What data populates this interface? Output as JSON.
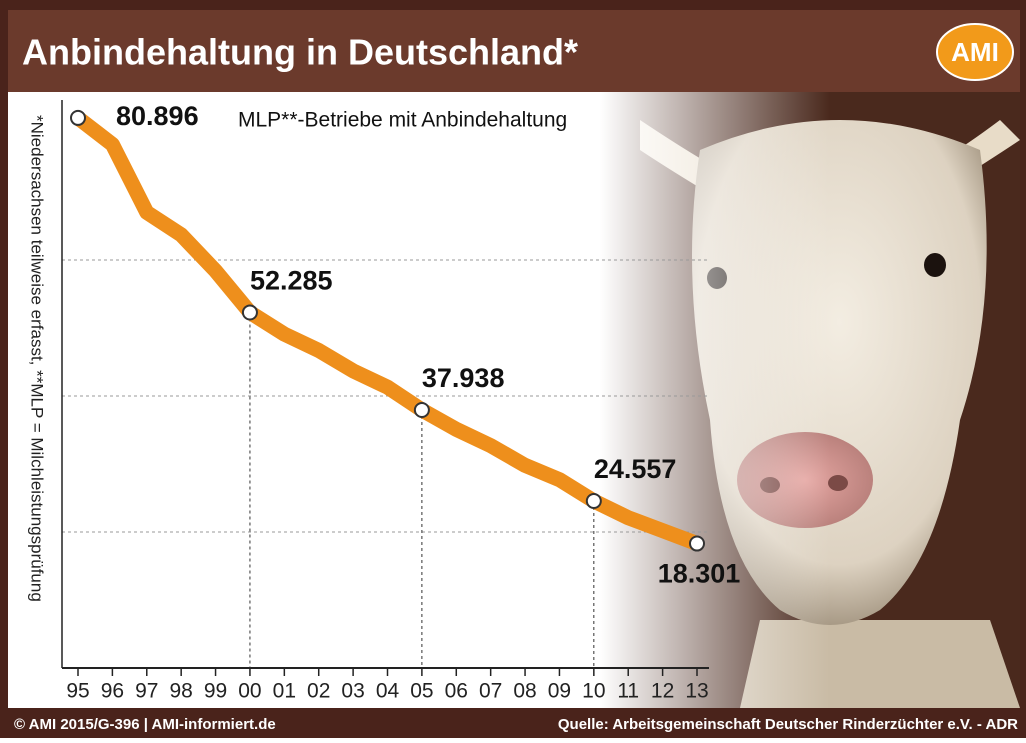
{
  "chart_data": {
    "type": "line",
    "title": "Anbindehaltung in Deutschland*",
    "logo": "AMI",
    "side_note": "*Niedersachsen teilweise erfasst, **MLP = Milchleistungsprüfung",
    "footer_left": "© AMI 2015/G-396 | AMI-informiert.de",
    "footer_right": "Quelle:  Arbeitsgemeinschaft Deutscher Rinderzüchter e.V. - ADR",
    "categories": [
      "95",
      "96",
      "97",
      "98",
      "99",
      "00",
      "01",
      "02",
      "03",
      "04",
      "05",
      "06",
      "07",
      "08",
      "09",
      "10",
      "11",
      "12",
      "13"
    ],
    "series": [
      {
        "name": "MLP**-Betriebe mit Anbindehaltung",
        "color": "#ee8f1c",
        "values": [
          80896,
          77000,
          67000,
          63700,
          58400,
          52285,
          49100,
          46700,
          43700,
          41300,
          37938,
          35100,
          32700,
          29800,
          27700,
          24557,
          22100,
          20200,
          18301
        ],
        "value_labels": [
          "80.896",
          null,
          null,
          null,
          null,
          "52.285",
          null,
          null,
          null,
          null,
          "37.938",
          null,
          null,
          null,
          null,
          "24.557",
          null,
          null,
          "18.301"
        ]
      }
    ],
    "ylim": [
      0,
      85000
    ],
    "yticks": [
      20000,
      40000,
      60000
    ],
    "grid": true
  }
}
